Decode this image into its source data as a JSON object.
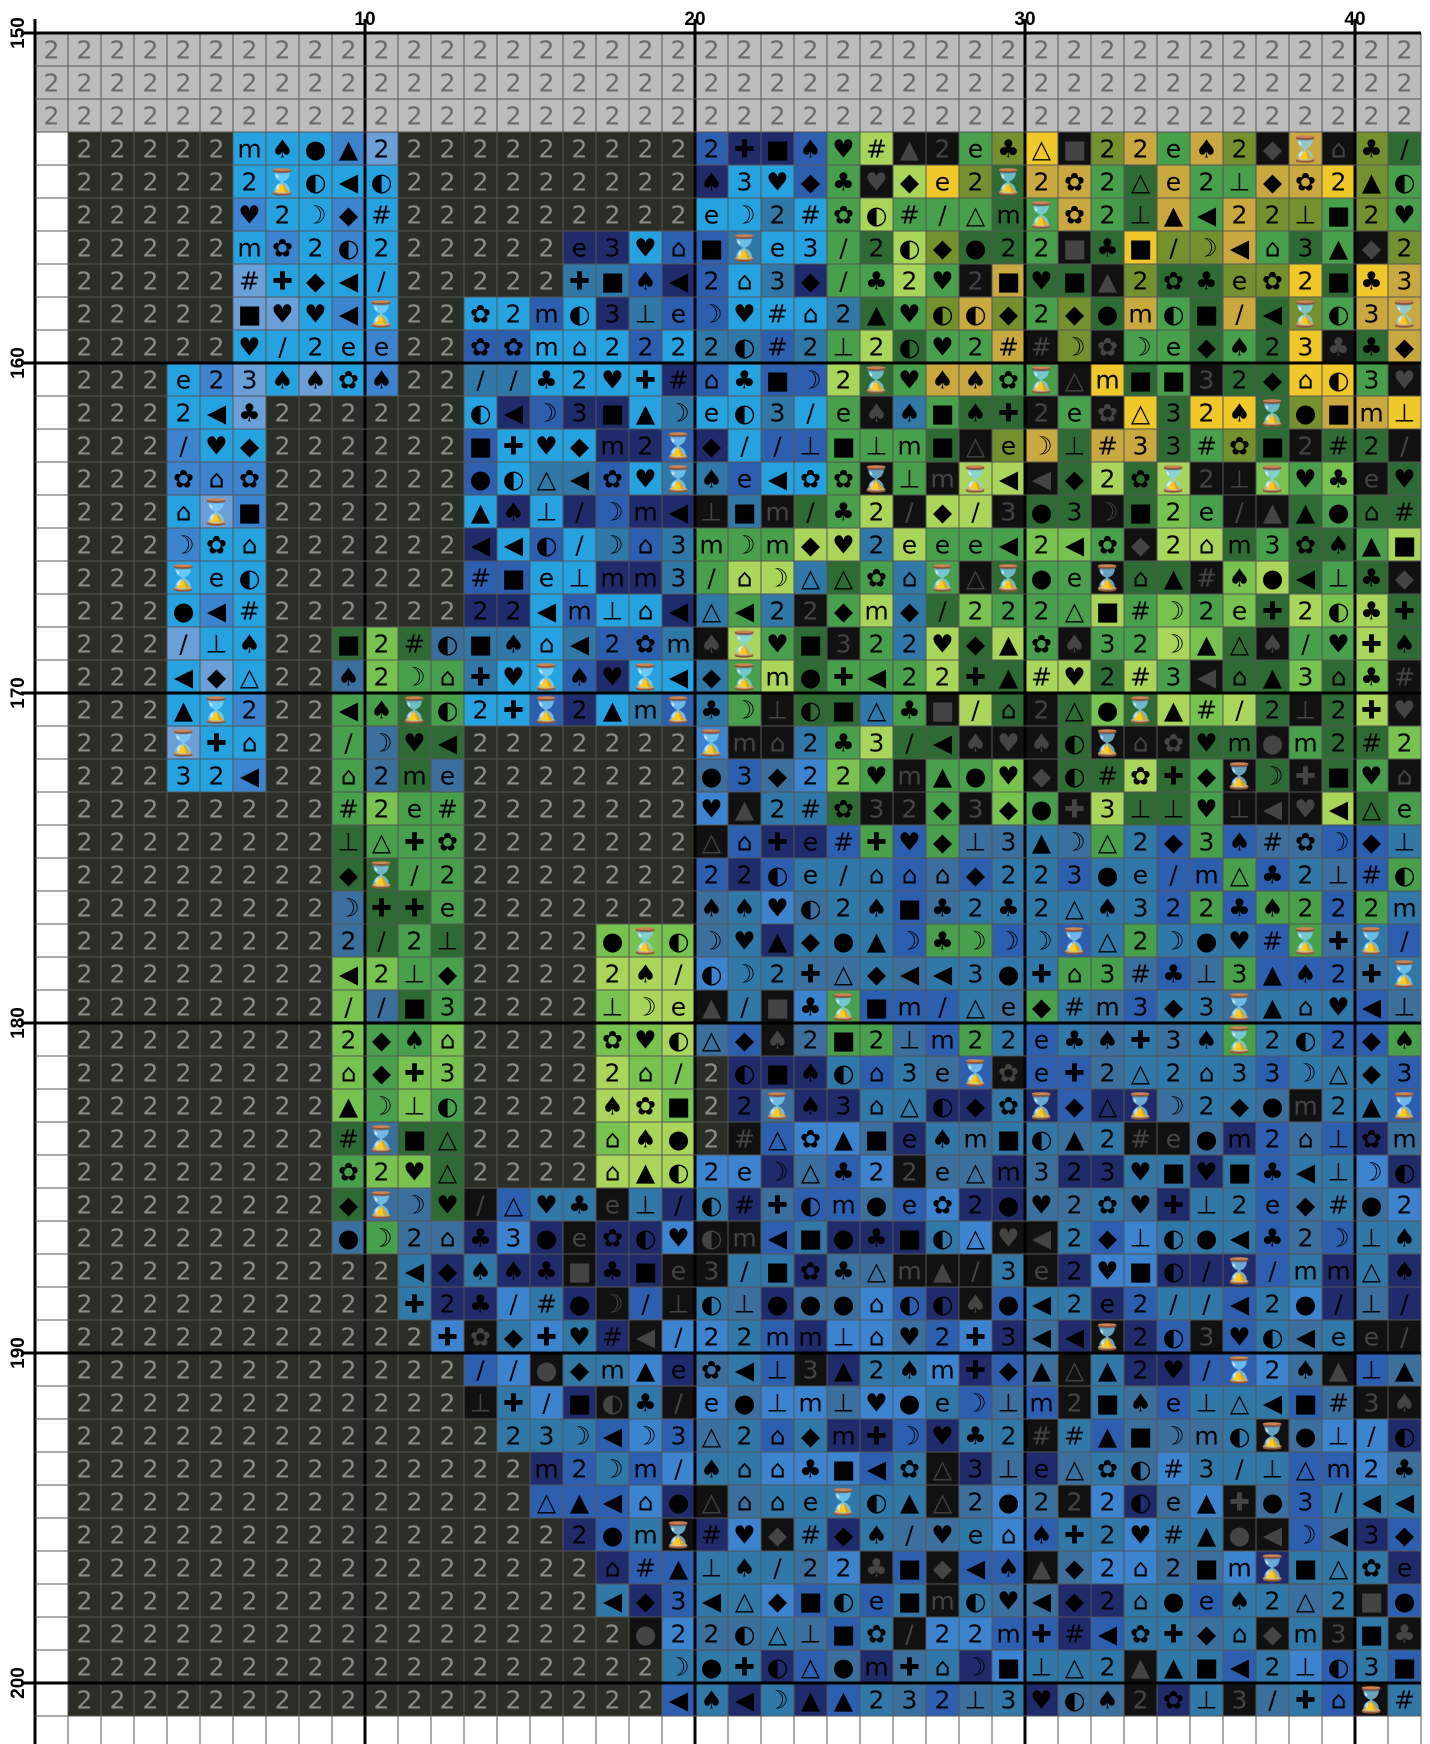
{
  "pattern": {
    "column_labels": [
      "10",
      "20",
      "30",
      "40"
    ],
    "row_labels": [
      "150",
      "160",
      "170",
      "180",
      "190",
      "200"
    ],
    "first_row_number": 150,
    "last_row_number": 201,
    "first_col_number": 1,
    "last_col_number": 42
  },
  "palette": {
    "dark": "#2a2e26",
    "grey": "#bcbcbc",
    "sky1": "#27a2e0",
    "sky2": "#3c84d0",
    "sky3": "#6a9fd8",
    "blue1": "#2c5fb0",
    "blue2": "#1f3f8c",
    "teal1": "#2f78a8",
    "teal2": "#3b6f9e",
    "navy": "#1f2b6a",
    "green1": "#2e6b34",
    "green2": "#48a04c",
    "green3": "#78c24f",
    "lime": "#a9d65a",
    "yellow": "#f0c829",
    "gold": "#c9a93f",
    "olive": "#75912f",
    "black": "#111111"
  },
  "grid_colors": {
    "minor_line": "#555555",
    "major_line": "#000000"
  }
}
